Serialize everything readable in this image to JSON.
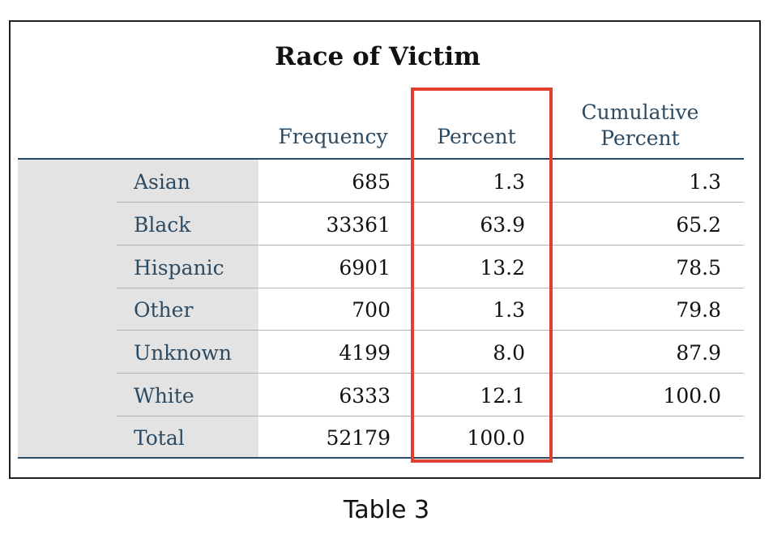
{
  "table": {
    "title": "Race of Victim",
    "headers": {
      "frequency": "Frequency",
      "percent": "Percent",
      "cumulative_line1": "Cumulative",
      "cumulative_line2": "Percent"
    },
    "rows": [
      {
        "label": "Asian",
        "frequency": "685",
        "percent": "1.3",
        "cumulative": "1.3"
      },
      {
        "label": "Black",
        "frequency": "33361",
        "percent": "63.9",
        "cumulative": "65.2"
      },
      {
        "label": "Hispanic",
        "frequency": "6901",
        "percent": "13.2",
        "cumulative": "78.5"
      },
      {
        "label": "Other",
        "frequency": "700",
        "percent": "1.3",
        "cumulative": "79.8"
      },
      {
        "label": "Unknown",
        "frequency": "4199",
        "percent": "8.0",
        "cumulative": "87.9"
      },
      {
        "label": "White",
        "frequency": "6333",
        "percent": "12.1",
        "cumulative": "100.0"
      },
      {
        "label": "Total",
        "frequency": "52179",
        "percent": "100.0",
        "cumulative": ""
      }
    ],
    "highlight_color": "#e2402f",
    "header_color": "#2b4a63"
  },
  "caption": "Table 3"
}
